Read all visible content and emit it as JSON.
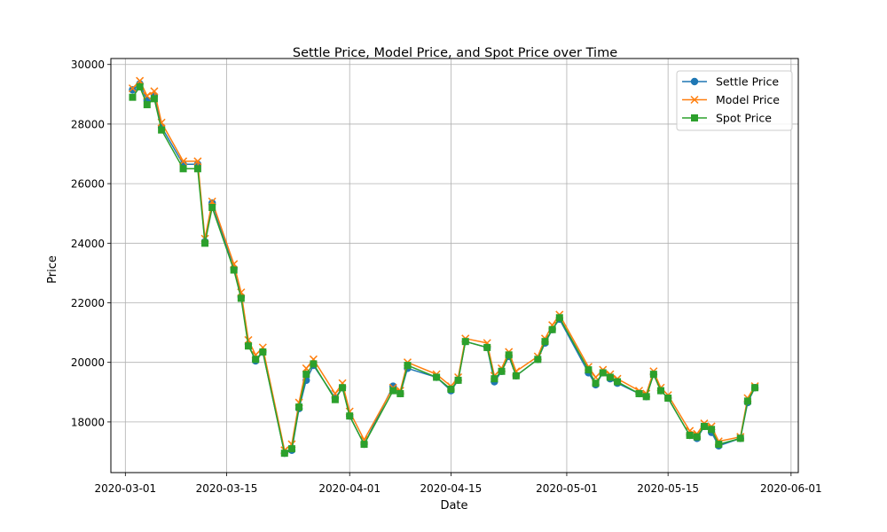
{
  "chart_data": {
    "type": "line",
    "title": "Settle Price, Model Price, and Spot Price over Time",
    "xlabel": "Date",
    "ylabel": "Price",
    "xlim": [
      "2020-02-28",
      "2020-06-02"
    ],
    "ylim": [
      16300,
      30200
    ],
    "grid": true,
    "legend_position": "top-right",
    "x_ticks": [
      "2020-03-01",
      "2020-03-15",
      "2020-04-01",
      "2020-04-15",
      "2020-05-01",
      "2020-05-15",
      "2020-06-01"
    ],
    "y_ticks": [
      18000,
      20000,
      22000,
      24000,
      26000,
      28000,
      30000
    ],
    "x": [
      "2020-03-02",
      "2020-03-03",
      "2020-03-04",
      "2020-03-05",
      "2020-03-06",
      "2020-03-09",
      "2020-03-11",
      "2020-03-12",
      "2020-03-13",
      "2020-03-16",
      "2020-03-17",
      "2020-03-18",
      "2020-03-19",
      "2020-03-20",
      "2020-03-23",
      "2020-03-24",
      "2020-03-25",
      "2020-03-26",
      "2020-03-27",
      "2020-03-30",
      "2020-03-31",
      "2020-04-01",
      "2020-04-03",
      "2020-04-07",
      "2020-04-08",
      "2020-04-09",
      "2020-04-13",
      "2020-04-15",
      "2020-04-16",
      "2020-04-17",
      "2020-04-20",
      "2020-04-21",
      "2020-04-22",
      "2020-04-23",
      "2020-04-24",
      "2020-04-27",
      "2020-04-28",
      "2020-04-29",
      "2020-04-30",
      "2020-05-04",
      "2020-05-05",
      "2020-05-06",
      "2020-05-07",
      "2020-05-08",
      "2020-05-11",
      "2020-05-12",
      "2020-05-13",
      "2020-05-14",
      "2020-05-15",
      "2020-05-18",
      "2020-05-19",
      "2020-05-20",
      "2020-05-21",
      "2020-05-22",
      "2020-05-25",
      "2020-05-26",
      "2020-05-27"
    ],
    "series": [
      {
        "name": "Settle Price",
        "color": "#1f77b4",
        "marker": "circle",
        "values": [
          29150,
          29350,
          28800,
          28950,
          27900,
          26650,
          26650,
          24050,
          25350,
          23150,
          22200,
          20600,
          20050,
          20350,
          16950,
          17050,
          18450,
          19400,
          19900,
          18800,
          19150,
          18200,
          17250,
          19200,
          18950,
          19800,
          19500,
          19050,
          19400,
          20700,
          20500,
          19350,
          19700,
          20200,
          19550,
          20100,
          20650,
          21100,
          21450,
          19650,
          19250,
          19650,
          19450,
          19300,
          18950,
          18850,
          19600,
          19050,
          18800,
          17550,
          17450,
          17850,
          17650,
          17200,
          17450,
          18650,
          19150
        ]
      },
      {
        "name": "Model Price",
        "color": "#ff7f0e",
        "marker": "x",
        "values": [
          29200,
          29450,
          28950,
          29100,
          28050,
          26750,
          26750,
          24150,
          25400,
          23300,
          22350,
          20750,
          20250,
          20500,
          17050,
          17250,
          18650,
          19800,
          20100,
          18950,
          19300,
          18350,
          17400,
          19150,
          19050,
          20000,
          19600,
          19200,
          19500,
          20800,
          20650,
          19550,
          19800,
          20350,
          19700,
          20200,
          20800,
          21250,
          21600,
          19850,
          19500,
          19750,
          19600,
          19450,
          19050,
          18950,
          19700,
          19150,
          18900,
          17700,
          17600,
          17950,
          17850,
          17350,
          17500,
          18800,
          19200
        ]
      },
      {
        "name": "Spot Price",
        "color": "#2ca02c",
        "marker": "square",
        "values": [
          28900,
          29250,
          28650,
          28850,
          27800,
          26500,
          26500,
          24000,
          25200,
          23100,
          22150,
          20550,
          20100,
          20350,
          16950,
          17100,
          18500,
          19600,
          19950,
          18750,
          19150,
          18200,
          17250,
          19050,
          18950,
          19900,
          19500,
          19100,
          19400,
          20700,
          20500,
          19450,
          19700,
          20250,
          19550,
          20100,
          20700,
          21100,
          21500,
          19750,
          19300,
          19650,
          19500,
          19350,
          18950,
          18850,
          19600,
          19050,
          18800,
          17550,
          17500,
          17850,
          17750,
          17250,
          17450,
          18700,
          19150
        ]
      }
    ]
  }
}
